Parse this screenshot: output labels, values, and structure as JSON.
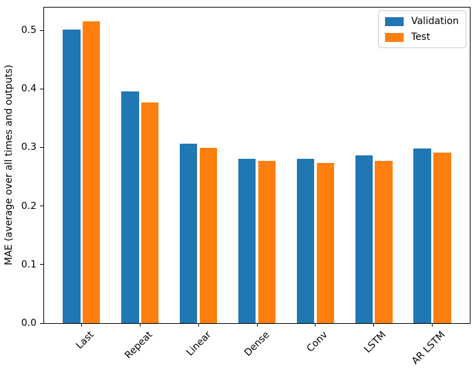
{
  "figure": {
    "background": "#ffffff",
    "text_color": "#000000"
  },
  "chart_data": {
    "type": "bar",
    "title": "",
    "xlabel": "",
    "ylabel": "MAE (average over all times and outputs)",
    "categories": [
      "Last",
      "Repeat",
      "Linear",
      "Dense",
      "Conv",
      "LSTM",
      "AR LSTM"
    ],
    "series": [
      {
        "name": "Validation",
        "color": "#1f77b4",
        "values": [
          0.501,
          0.396,
          0.306,
          0.281,
          0.28,
          0.286,
          0.298
        ]
      },
      {
        "name": "Test",
        "color": "#ff7f0e",
        "values": [
          0.515,
          0.377,
          0.299,
          0.277,
          0.274,
          0.277,
          0.291
        ]
      }
    ],
    "ylim": [
      0,
      0.54
    ],
    "yticks": [
      "0.0",
      "0.1",
      "0.2",
      "0.3",
      "0.4",
      "0.5"
    ],
    "ytick_values": [
      0.0,
      0.1,
      0.2,
      0.3,
      0.4,
      0.5
    ],
    "bar_width_units": 0.3,
    "bar_offsets_units": [
      -0.17,
      0.17
    ],
    "xtick_rotation_deg": 45,
    "grid": false,
    "legend": {
      "position": "upper-right",
      "entries": [
        "Validation",
        "Test"
      ]
    }
  }
}
